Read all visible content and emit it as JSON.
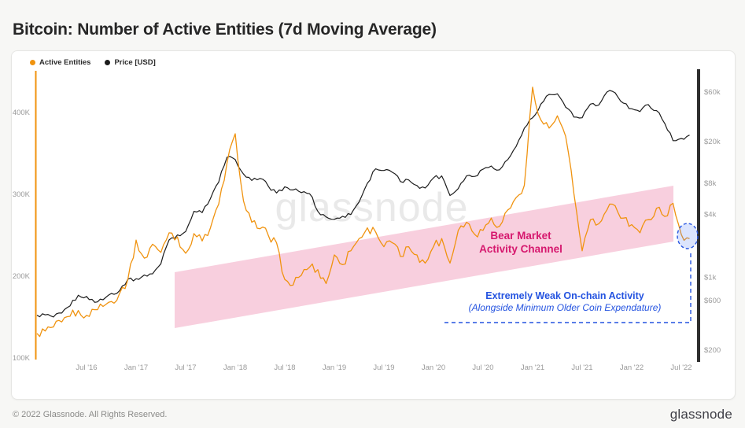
{
  "header": {
    "title": "Bitcoin: Number of Active Entities (7d Moving Average)"
  },
  "watermark": "glassnode",
  "footer": {
    "copyright": "© 2022 Glassnode. All Rights Reserved.",
    "logo": "glassnode"
  },
  "chart_data": {
    "type": "line",
    "title": "Bitcoin: Number of Active Entities (7d Moving Average)",
    "grid": false,
    "legend_position": "top-left",
    "x_start": "2016-01",
    "x_interval": "1 month",
    "x_tick_labels": [
      "Jul '16",
      "Jan '17",
      "Jul '17",
      "Jan '18",
      "Jul '18",
      "Jan '19",
      "Jul '19",
      "Jan '20",
      "Jul '20",
      "Jan '21",
      "Jul '21",
      "Jan '22",
      "Jul '22"
    ],
    "x_tick_month_offsets": [
      6,
      12,
      18,
      24,
      30,
      36,
      42,
      48,
      54,
      60,
      66,
      72,
      78
    ],
    "left_axis": {
      "label": "Active Entities",
      "scale": "linear",
      "unit": "thousands",
      "range": [
        100,
        450
      ],
      "ticks": [
        {
          "value": 400,
          "label": "400K"
        },
        {
          "value": 300,
          "label": "300K"
        },
        {
          "value": 200,
          "label": "200K"
        },
        {
          "value": 100,
          "label": "100K"
        }
      ]
    },
    "right_axis": {
      "label": "Price [USD]",
      "scale": "log",
      "unit": "USD",
      "range": [
        200,
        77000
      ],
      "ticks": [
        {
          "value": 60000,
          "label": "$60k"
        },
        {
          "value": 20000,
          "label": "$20k"
        },
        {
          "value": 8000,
          "label": "$8k"
        },
        {
          "value": 4000,
          "label": "$4k"
        },
        {
          "value": 1000,
          "label": "$1k"
        },
        {
          "value": 600,
          "label": "$600"
        },
        {
          "value": 200,
          "label": "$200"
        }
      ]
    },
    "series": [
      {
        "name": "Active Entities",
        "color": "#f0930f",
        "axis": "left",
        "unit": "thousands",
        "values": [
          130,
          133,
          138,
          144,
          151,
          158,
          152,
          159,
          163,
          169,
          179,
          196,
          244,
          222,
          239,
          229,
          253,
          248,
          228,
          252,
          243,
          259,
          288,
          338,
          374,
          292,
          266,
          258,
          250,
          241,
          196,
          189,
          201,
          211,
          208,
          191,
          226,
          214,
          231,
          246,
          259,
          254,
          236,
          241,
          224,
          236,
          226,
          216,
          236,
          246,
          216,
          256,
          266,
          251,
          256,
          271,
          261,
          281,
          296,
          311,
          431,
          391,
          381,
          396,
          371,
          301,
          231,
          269,
          264,
          281,
          286,
          271,
          263,
          253,
          269,
          283,
          273,
          289,
          251,
          246
        ]
      },
      {
        "name": "Price [USD]",
        "color": "#1c1c1c",
        "axis": "right",
        "unit": "USD",
        "values": [
          432,
          436,
          416,
          454,
          531,
          672,
          655,
          575,
          609,
          700,
          745,
          958,
          968,
          1052,
          1080,
          1348,
          2286,
          2550,
          2748,
          4300,
          4180,
          5700,
          8200,
          14200,
          13500,
          9800,
          8500,
          8900,
          7500,
          6450,
          7400,
          6900,
          6500,
          6350,
          4300,
          3800,
          3600,
          3850,
          4000,
          5300,
          8000,
          11000,
          10600,
          10200,
          8300,
          8600,
          7600,
          7200,
          9000,
          9400,
          6100,
          7100,
          9400,
          9300,
          10900,
          11700,
          10750,
          13500,
          18000,
          27000,
          34000,
          46000,
          57000,
          57800,
          43000,
          34500,
          34000,
          46000,
          45000,
          60000,
          59000,
          47000,
          41500,
          39000,
          45500,
          39800,
          30000,
          20500,
          21500,
          23200
        ]
      }
    ],
    "legend": [
      {
        "label": "Active Entities",
        "color": "#f0930f"
      },
      {
        "label": "Price [USD]",
        "color": "#1c1c1c"
      }
    ],
    "annotations": {
      "bear_channel": {
        "line1": "Bear Market",
        "line2": "Activity Channel",
        "text_color": "#d6186e",
        "fill_color": "#f2a7c3"
      },
      "weak_activity": {
        "line1": "Extremely Weak On-chain Activity",
        "line2": "(Alongside Minimum Older Coin Expendature)",
        "text_color": "#2453e0"
      }
    }
  }
}
